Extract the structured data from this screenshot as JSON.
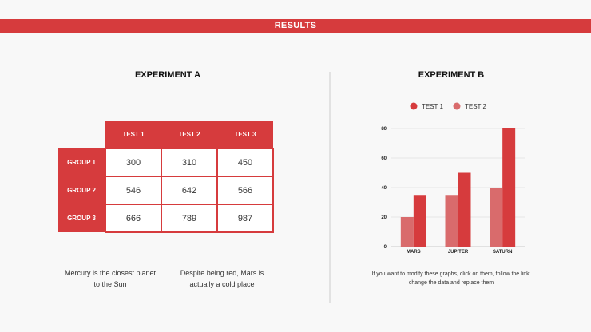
{
  "banner": "RESULTS",
  "experiment_a": {
    "title": "EXPERIMENT A",
    "columns": [
      "TEST 1",
      "TEST 2",
      "TEST 3"
    ],
    "rows": [
      {
        "label": "GROUP 1",
        "values": [
          "300",
          "310",
          "450"
        ]
      },
      {
        "label": "GROUP 2",
        "values": [
          "546",
          "642",
          "566"
        ]
      },
      {
        "label": "GROUP 3",
        "values": [
          "666",
          "789",
          "987"
        ]
      }
    ],
    "caption_left": "Mercury is the closest planet to the Sun",
    "caption_right": "Despite being red, Mars is actually a cold place"
  },
  "experiment_b": {
    "title": "EXPERIMENT B",
    "caption": "If you want to modify these graphs, click on them, follow the link, change the data and replace them"
  },
  "colors": {
    "accent": "#d63b3d",
    "secondary": "#d96b6c"
  },
  "chart_data": {
    "type": "bar",
    "categories": [
      "MARS",
      "JUPITER",
      "SATURN"
    ],
    "series": [
      {
        "name": "TEST 1",
        "values": [
          35,
          50,
          80
        ],
        "color": "#d63b3d"
      },
      {
        "name": "TEST 2",
        "values": [
          20,
          35,
          40
        ],
        "color": "#d96b6c"
      }
    ],
    "ylim": [
      0,
      80
    ],
    "yticks": [
      0,
      20,
      40,
      60,
      80
    ],
    "grid": true,
    "legend": "top-center"
  }
}
